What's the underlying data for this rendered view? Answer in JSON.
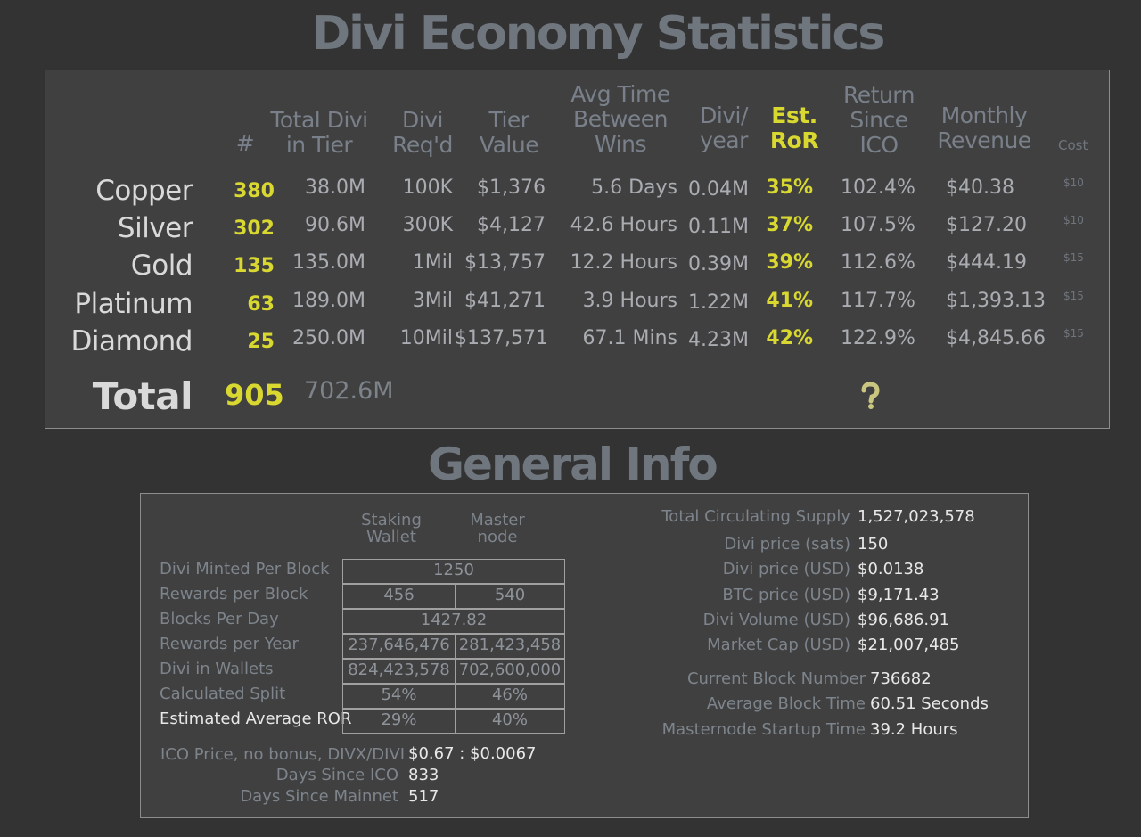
{
  "economy": {
    "title": "Divi Economy Statistics",
    "headers": {
      "count": "#",
      "total_divi": "Total Divi in Tier",
      "divi_reqd": "Divi Req'd",
      "tier_value": "Tier Value",
      "avg_time": "Avg Time Between Wins",
      "divi_year": "Divi/ year",
      "est_ror": "Est. RoR",
      "return_ico": "Return Since ICO",
      "monthly_revenue": "Monthly Revenue",
      "cost": "Cost"
    },
    "tiers": [
      {
        "name": "Copper",
        "count": "380",
        "total": "38.0M",
        "reqd": "100K",
        "value": "$1,376",
        "avg_time": "5.6 Days",
        "divi_year": "0.04M",
        "ror": "35%",
        "return": "102.4%",
        "revenue": "$40.38",
        "cost": "$10"
      },
      {
        "name": "Silver",
        "count": "302",
        "total": "90.6M",
        "reqd": "300K",
        "value": "$4,127",
        "avg_time": "42.6 Hours",
        "divi_year": "0.11M",
        "ror": "37%",
        "return": "107.5%",
        "revenue": "$127.20",
        "cost": "$10"
      },
      {
        "name": "Gold",
        "count": "135",
        "total": "135.0M",
        "reqd": "1Mil",
        "value": "$13,757",
        "avg_time": "12.2 Hours",
        "divi_year": "0.39M",
        "ror": "39%",
        "return": "112.6%",
        "revenue": "$444.19",
        "cost": "$15"
      },
      {
        "name": "Platinum",
        "count": "63",
        "total": "189.0M",
        "reqd": "3Mil",
        "value": "$41,271",
        "avg_time": "3.9 Hours",
        "divi_year": "1.22M",
        "ror": "41%",
        "return": "117.7%",
        "revenue": "$1,393.13",
        "cost": "$15"
      },
      {
        "name": "Diamond",
        "count": "25",
        "total": "250.0M",
        "reqd": "10Mil",
        "value": "$137,571",
        "avg_time": "67.1 Mins",
        "divi_year": "4.23M",
        "ror": "42%",
        "return": "122.9%",
        "revenue": "$4,845.66",
        "cost": "$15"
      }
    ],
    "total": {
      "label": "Total",
      "count": "905",
      "divi": "702.6M"
    },
    "help_icon": "question-mark-icon"
  },
  "general": {
    "title": "General Info",
    "col_staking": "Staking Wallet",
    "col_master": "Master node",
    "rows": [
      {
        "label": "Divi Minted Per Block",
        "merged": "1250"
      },
      {
        "label": "Rewards per Block",
        "staking": "456",
        "master": "540"
      },
      {
        "label": "Blocks Per Day",
        "merged": "1427.82"
      },
      {
        "label": "Rewards per Year",
        "staking": "237,646,476",
        "master": "281,423,458"
      },
      {
        "label": "Divi in Wallets",
        "staking": "824,423,578",
        "master": "702,600,000"
      },
      {
        "label": "Calculated Split",
        "staking": "54%",
        "master": "46%"
      },
      {
        "label": "Estimated Average ROR",
        "staking": "29%",
        "master": "40%"
      }
    ],
    "ico_price_label": "ICO Price, no bonus, DIVX/DIVI",
    "ico_price": "$0.67 : $0.0067",
    "days_ico_label": "Days Since ICO",
    "days_ico": "833",
    "days_mainnet_label": "Days Since Mainnet",
    "days_mainnet": "517",
    "stats": [
      {
        "label": "Total Circulating Supply",
        "value": "1,527,023,578"
      },
      {
        "label": "Divi price (sats)",
        "value": "150"
      },
      {
        "label": "Divi price (USD)",
        "value": "$0.0138"
      },
      {
        "label": "BTC price (USD)",
        "value": "$9,171.43"
      },
      {
        "label": "Divi Volume (USD)",
        "value": "$96,686.91"
      },
      {
        "label": "Market Cap (USD)",
        "value": "$21,007,485"
      }
    ],
    "block_stats": [
      {
        "label": "Current Block Number",
        "value": "736682"
      },
      {
        "label": "Average Block Time",
        "value": "60.51 Seconds"
      },
      {
        "label": "Masternode Startup Time",
        "value": "39.2 Hours"
      }
    ]
  },
  "colors": {
    "background": "#333333",
    "accent": "#d8d830",
    "panel": "#404040"
  }
}
